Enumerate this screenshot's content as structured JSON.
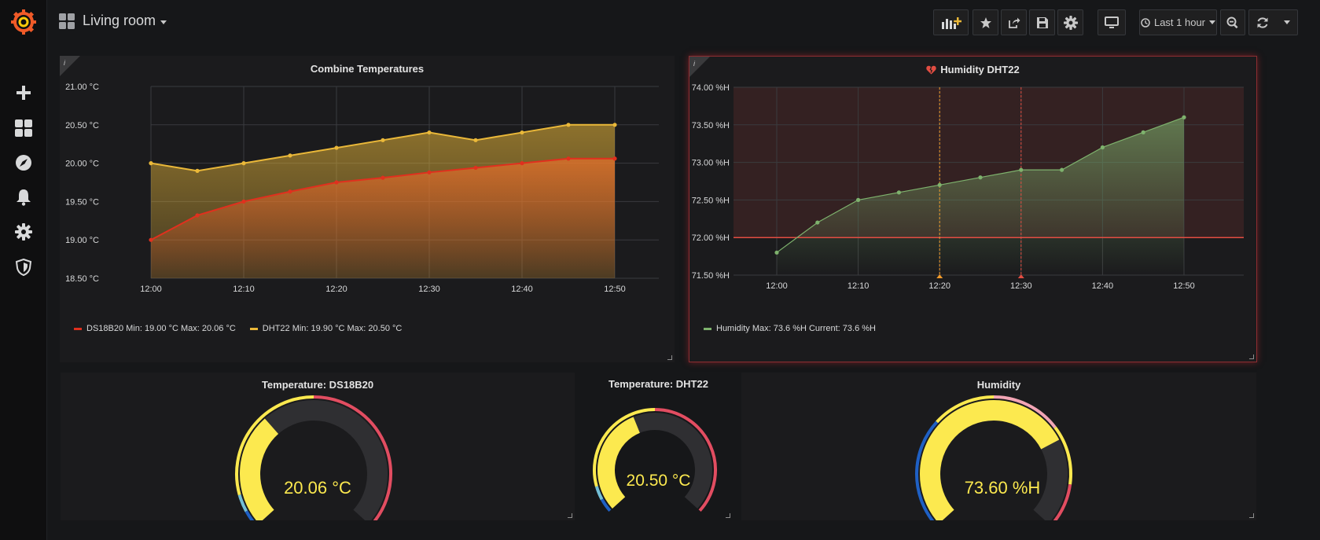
{
  "dashboard": {
    "title": "Living room"
  },
  "toolbar": {
    "time_range_label": "Last 1 hour"
  },
  "colors": {
    "accent": "#f05a28",
    "ds18b20": "#e0301e",
    "dht22": "#eab839",
    "humidity": "#7eb26d",
    "threshold": "#e24d42",
    "gauge_yellow": "#fce94f",
    "gauge_red": "#e24d61",
    "gauge_blue": "#1f60c4",
    "gauge_pink": "#f2a5b5"
  },
  "panels": {
    "combine": {
      "title": "Combine Temperatures",
      "legend": {
        "ds18b20": "DS18B20  Min: 19.00 °C  Max: 20.06 °C",
        "dht22": "DHT22  Min: 19.90 °C  Max: 20.50 °C"
      }
    },
    "humidity_graph": {
      "title": "Humidity DHT22",
      "legend": "Humidity  Max: 73.6 %H  Current: 73.6 %H"
    },
    "gauge_ds18b20": {
      "title": "Temperature: DS18B20",
      "value": "20.06 °C",
      "level": 20.06,
      "min": 18,
      "max": 24
    },
    "gauge_dht22": {
      "title": "Temperature: DHT22",
      "value": "20.50 °C",
      "level": 20.5,
      "min": 18,
      "max": 24
    },
    "gauge_humidity": {
      "title": "Humidity",
      "value": "73.60 %H",
      "level": 73.6,
      "min": 0,
      "max": 100
    }
  },
  "chart_data": [
    {
      "type": "area",
      "title": "Combine Temperatures",
      "categories": [
        "12:00",
        "12:10",
        "12:20",
        "12:30",
        "12:40",
        "12:50"
      ],
      "x": [
        0,
        5,
        10,
        15,
        20,
        25,
        30,
        35,
        40,
        45,
        50
      ],
      "series": [
        {
          "name": "DS18B20",
          "values": [
            19.0,
            19.32,
            19.5,
            19.63,
            19.75,
            19.81,
            19.88,
            19.94,
            20.0,
            20.06,
            20.06
          ]
        },
        {
          "name": "DHT22",
          "values": [
            20.0,
            19.9,
            20.0,
            20.1,
            20.2,
            20.3,
            20.4,
            20.3,
            20.4,
            20.5,
            20.5
          ]
        }
      ],
      "y_ticks": [
        "21.00 °C",
        "20.50 °C",
        "20.00 °C",
        "19.50 °C",
        "19.00 °C",
        "18.50 °C"
      ],
      "ylim": [
        18.5,
        21.0
      ]
    },
    {
      "type": "area",
      "title": "Humidity DHT22",
      "categories": [
        "12:00",
        "12:10",
        "12:20",
        "12:30",
        "12:40",
        "12:50"
      ],
      "x": [
        0,
        5,
        10,
        15,
        20,
        25,
        30,
        35,
        40,
        45,
        50
      ],
      "series": [
        {
          "name": "Humidity",
          "values": [
            71.8,
            72.2,
            72.5,
            72.6,
            72.7,
            72.8,
            72.9,
            72.9,
            73.2,
            73.4,
            73.6
          ]
        }
      ],
      "y_ticks": [
        "74.00 %H",
        "73.50 %H",
        "73.00 %H",
        "72.50 %H",
        "72.00 %H",
        "71.50 %H"
      ],
      "ylim": [
        71.5,
        74.0
      ],
      "threshold": 72.0,
      "annotations": [
        20,
        30
      ]
    }
  ]
}
